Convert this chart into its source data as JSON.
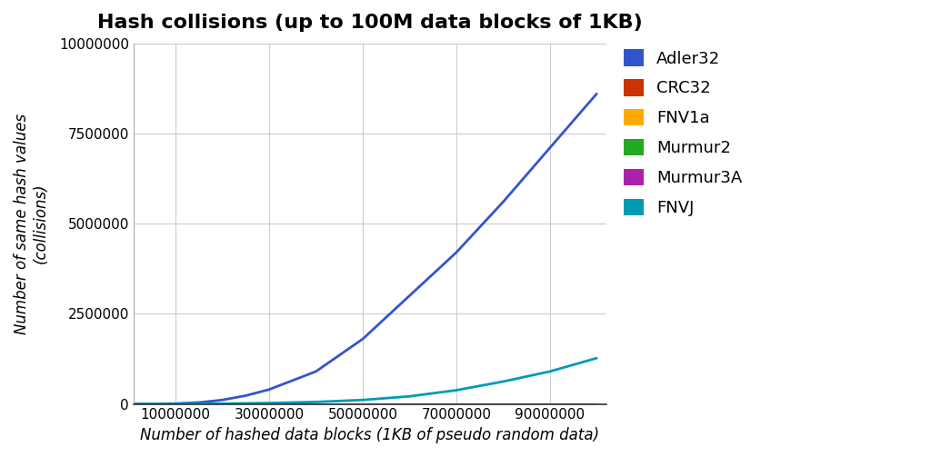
{
  "title": "Hash collisions (up to 100M data blocks of 1KB)",
  "xlabel": "Number of hashed data blocks (1KB of pseudo random data)",
  "ylabel": "Number of same hash values\n(collisions)",
  "xlim": [
    1000000,
    102000000
  ],
  "ylim": [
    0,
    10000000
  ],
  "xticks": [
    10000000,
    30000000,
    50000000,
    70000000,
    90000000
  ],
  "yticks": [
    0,
    2500000,
    5000000,
    7500000,
    10000000
  ],
  "ytick_labels": [
    "0",
    "2500000",
    "5000000",
    "7500000",
    "10000000"
  ],
  "background_color": "#ffffff",
  "grid_color": "#cccccc",
  "series": [
    {
      "name": "Adler32",
      "color": "#3355cc",
      "x": [
        1000000,
        5000000,
        10000000,
        15000000,
        20000000,
        25000000,
        30000000,
        40000000,
        50000000,
        60000000,
        70000000,
        80000000,
        90000000,
        100000000
      ],
      "y": [
        0,
        1000,
        10000,
        40000,
        110000,
        230000,
        400000,
        900000,
        1800000,
        3000000,
        4200000,
        5600000,
        7100000,
        8600000
      ]
    },
    {
      "name": "CRC32",
      "color": "#cc3300",
      "x": [
        1000000,
        100000000
      ],
      "y": [
        0,
        0
      ]
    },
    {
      "name": "FNV1a",
      "color": "#ffaa00",
      "x": [
        1000000,
        100000000
      ],
      "y": [
        0,
        0
      ]
    },
    {
      "name": "Murmur2",
      "color": "#22aa22",
      "x": [
        1000000,
        100000000
      ],
      "y": [
        0,
        0
      ]
    },
    {
      "name": "Murmur3A",
      "color": "#aa22aa",
      "x": [
        1000000,
        100000000
      ],
      "y": [
        0,
        0
      ]
    },
    {
      "name": "FNVJ",
      "color": "#009ab5",
      "x": [
        1000000,
        5000000,
        10000000,
        20000000,
        30000000,
        40000000,
        50000000,
        60000000,
        70000000,
        80000000,
        90000000,
        100000000
      ],
      "y": [
        0,
        200,
        1200,
        8000,
        25000,
        55000,
        110000,
        210000,
        380000,
        620000,
        900000,
        1270000
      ]
    }
  ],
  "legend_colors": [
    "#3355cc",
    "#cc3300",
    "#ffaa00",
    "#22aa22",
    "#aa22aa",
    "#009ab5"
  ],
  "legend_labels": [
    "Adler32",
    "CRC32",
    "FNV1a",
    "Murmur2",
    "Murmur3A",
    "FNVJ"
  ],
  "legend_fontsize": 13,
  "title_fontsize": 16,
  "axis_label_fontsize": 12,
  "tick_fontsize": 11
}
